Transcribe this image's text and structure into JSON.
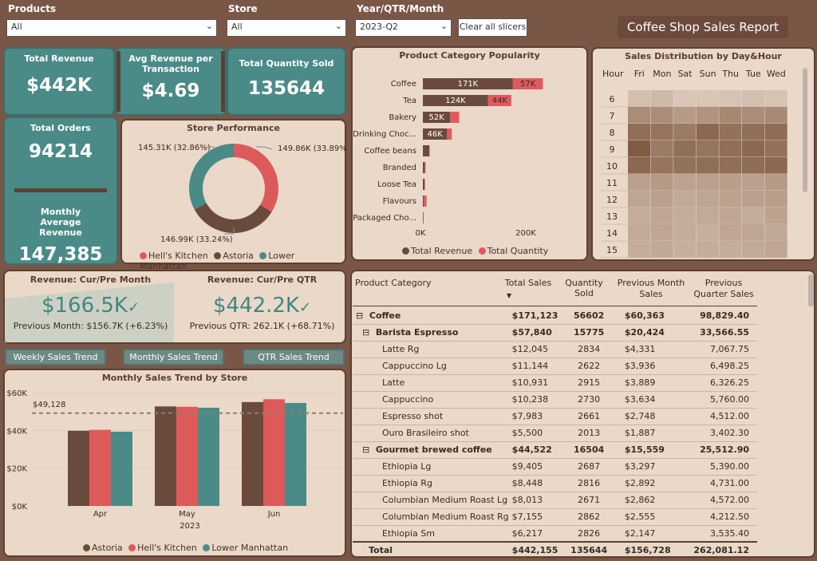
{
  "filters": {
    "products": {
      "label": "Products",
      "value": "All"
    },
    "store": {
      "label": "Store",
      "value": "All"
    },
    "period": {
      "label": "Year/QTR/Month",
      "value": "2023-Q2"
    },
    "clear_label": "Clear all slicers"
  },
  "report_title": "Coffee Shop Sales Report",
  "kpis": {
    "total_revenue": {
      "title": "Total Revenue",
      "value": "$442K"
    },
    "avg_revenue": {
      "title": "Avg Revenue per Transaction",
      "value": "$4.69"
    },
    "total_quantity": {
      "title": "Total Quantity Sold",
      "value": "135644"
    },
    "total_orders": {
      "title": "Total Orders",
      "value": "94214"
    },
    "monthly_avg": {
      "title": "Monthly Average Revenue",
      "value": "147,385"
    }
  },
  "store_performance": {
    "title": "Store Performance",
    "labels": [
      "149.86K (33.89%)",
      "146.99K (33.24%)",
      "145.31K (32.86%)"
    ],
    "legend": [
      "Hell's Kitchen",
      "Astoria",
      "Lower Manhattan"
    ]
  },
  "category_popularity": {
    "title": "Product Category Popularity",
    "legend": [
      "Total Revenue",
      "Total Quantity"
    ],
    "axis_ticks": [
      "0K",
      "200K"
    ]
  },
  "heatmap": {
    "title": "Sales Distribution by Day&Hour",
    "hour_header": "Hour",
    "days": [
      "Fri",
      "Mon",
      "Sat",
      "Sun",
      "Thu",
      "Tue",
      "Wed"
    ],
    "hours": [
      "6",
      "7",
      "8",
      "9",
      "10",
      "11",
      "12",
      "13",
      "14",
      "15"
    ]
  },
  "comparison": {
    "month": {
      "title": "Revenue: Cur/Pre Month",
      "value": "$166.5K",
      "sub": "Previous Month: $156.7K (+6.23%)"
    },
    "qtr": {
      "title": "Revenue: Cur/Pre QTR",
      "value": "$442.2K",
      "sub": "Previous QTR: 262.1K (+68.71%)"
    }
  },
  "trend_buttons": [
    "Weekly Sales Trend",
    "Monthly Sales Trend",
    "QTR Sales Trend"
  ],
  "monthly_trend": {
    "title": "Monthly Sales Trend by Store",
    "avg_label": "$49,128",
    "year_label": "2023",
    "legend": [
      "Astoria",
      "Hell's Kitchen",
      "Lower Manhattan"
    ]
  },
  "table": {
    "headers": [
      "Product Category",
      "Total Sales",
      "Quantity Sold",
      "Previous Month Sales",
      "Previous Quarter Sales"
    ],
    "rows": [
      {
        "level": 0,
        "label": "Coffee",
        "vals": [
          "$171,123",
          "56602",
          "$60,363",
          "98,829.40"
        ]
      },
      {
        "level": 1,
        "label": "Barista Espresso",
        "vals": [
          "$57,840",
          "15775",
          "$20,424",
          "33,566.55"
        ]
      },
      {
        "level": 2,
        "label": "Latte Rg",
        "vals": [
          "$12,045",
          "2834",
          "$4,331",
          "7,067.75"
        ]
      },
      {
        "level": 2,
        "label": "Cappuccino Lg",
        "vals": [
          "$11,144",
          "2622",
          "$3,936",
          "6,498.25"
        ]
      },
      {
        "level": 2,
        "label": "Latte",
        "vals": [
          "$10,931",
          "2915",
          "$3,889",
          "6,326.25"
        ]
      },
      {
        "level": 2,
        "label": "Cappuccino",
        "vals": [
          "$10,238",
          "2730",
          "$3,634",
          "5,760.00"
        ]
      },
      {
        "level": 2,
        "label": "Espresso shot",
        "vals": [
          "$7,983",
          "2661",
          "$2,748",
          "4,512.00"
        ]
      },
      {
        "level": 2,
        "label": "Ouro Brasileiro shot",
        "vals": [
          "$5,500",
          "2013",
          "$1,887",
          "3,402.30"
        ]
      },
      {
        "level": 1,
        "label": "Gourmet brewed coffee",
        "vals": [
          "$44,522",
          "16504",
          "$15,559",
          "25,512.90"
        ]
      },
      {
        "level": 2,
        "label": "Ethiopia Lg",
        "vals": [
          "$9,405",
          "2687",
          "$3,297",
          "5,390.00"
        ]
      },
      {
        "level": 2,
        "label": "Ethiopia Rg",
        "vals": [
          "$8,448",
          "2816",
          "$2,892",
          "4,731.00"
        ]
      },
      {
        "level": 2,
        "label": "Columbian Medium Roast Lg",
        "vals": [
          "$8,013",
          "2671",
          "$2,862",
          "4,572.00"
        ]
      },
      {
        "level": 2,
        "label": "Columbian Medium Roast Rg",
        "vals": [
          "$7,155",
          "2862",
          "$2,555",
          "4,212.50"
        ]
      },
      {
        "level": 2,
        "label": "Ethiopia Sm",
        "vals": [
          "$6,217",
          "2826",
          "$2,147",
          "3,535.40"
        ]
      }
    ],
    "total": {
      "label": "Total",
      "vals": [
        "$442,155",
        "135644",
        "$156,728",
        "262,081.12"
      ]
    }
  },
  "colors": {
    "astoria": "#6b4a3e",
    "hells_kitchen": "#de5a5a",
    "lower_manhattan": "#4a8b88",
    "revenue": "#6b4a3e",
    "quantity": "#e05a5f"
  },
  "chart_data": [
    {
      "type": "bar",
      "title": "Product Category Popularity",
      "orientation": "horizontal",
      "stacked": true,
      "categories": [
        "Coffee",
        "Tea",
        "Bakery",
        "Drinking Choc...",
        "Coffee beans",
        "Branded",
        "Loose Tea",
        "Flavours",
        "Packaged Cho..."
      ],
      "series": [
        {
          "name": "Total Revenue",
          "values": [
            171,
            124,
            52,
            46,
            12,
            4,
            3,
            2,
            1
          ],
          "labels": [
            "171K",
            "124K",
            "52K",
            "46K",
            "",
            "",
            "",
            "",
            ""
          ]
        },
        {
          "name": "Total Quantity",
          "values": [
            57,
            44,
            17,
            9,
            1,
            1,
            1,
            5,
            0.5
          ],
          "labels": [
            "57K",
            "44K",
            "",
            "",
            "",
            "",
            "",
            "",
            ""
          ]
        }
      ],
      "xlim": [
        0,
        280
      ],
      "legend": "bottom"
    },
    {
      "type": "pie",
      "title": "Store Performance",
      "categories": [
        "Hell's Kitchen",
        "Astoria",
        "Lower Manhattan"
      ],
      "values": [
        149.86,
        146.99,
        145.31
      ],
      "legend": "bottom"
    },
    {
      "type": "bar",
      "title": "Monthly Sales Trend by Store",
      "categories": [
        "Apr",
        "May",
        "Jun"
      ],
      "series": [
        {
          "name": "Astoria",
          "values": [
            39800,
            52700,
            55000
          ]
        },
        {
          "name": "Hell's Kitchen",
          "values": [
            40300,
            52500,
            56500
          ]
        },
        {
          "name": "Lower Manhattan",
          "values": [
            39300,
            52000,
            54500
          ]
        }
      ],
      "reference_line": 49128,
      "yticks": [
        "$0K",
        "$20K",
        "$40K",
        "$60K"
      ],
      "ylim": [
        0,
        60000
      ],
      "legend": "bottom"
    },
    {
      "type": "heatmap",
      "title": "Sales Distribution by Day&Hour",
      "x": [
        "Fri",
        "Mon",
        "Sat",
        "Sun",
        "Thu",
        "Tue",
        "Wed"
      ],
      "y": [
        "6",
        "7",
        "8",
        "9",
        "10",
        "11",
        "12",
        "13",
        "14",
        "15"
      ],
      "values": [
        [
          0.15,
          0.2,
          0.1,
          0.1,
          0.12,
          0.15,
          0.12
        ],
        [
          0.55,
          0.55,
          0.45,
          0.5,
          0.6,
          0.55,
          0.58
        ],
        [
          0.8,
          0.75,
          0.7,
          0.85,
          0.78,
          0.8,
          0.82
        ],
        [
          0.95,
          0.7,
          0.8,
          0.75,
          0.8,
          0.85,
          0.78
        ],
        [
          0.85,
          0.75,
          0.78,
          0.8,
          0.8,
          0.82,
          0.85
        ],
        [
          0.4,
          0.45,
          0.38,
          0.4,
          0.42,
          0.4,
          0.45
        ],
        [
          0.35,
          0.4,
          0.32,
          0.35,
          0.38,
          0.4,
          0.42
        ],
        [
          0.3,
          0.35,
          0.3,
          0.32,
          0.35,
          0.3,
          0.38
        ],
        [
          0.32,
          0.35,
          0.3,
          0.28,
          0.35,
          0.35,
          0.33
        ],
        [
          0.3,
          0.33,
          0.28,
          0.3,
          0.3,
          0.32,
          0.35
        ]
      ]
    }
  ]
}
